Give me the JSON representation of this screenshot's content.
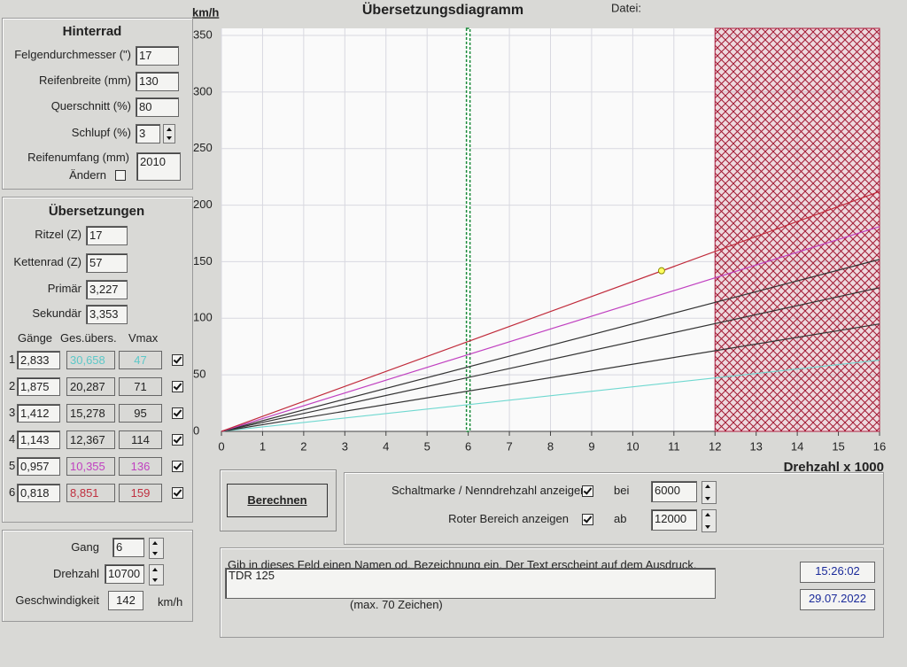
{
  "window": {
    "title": "Übersetzungsdiagramm",
    "file_label": "Datei:"
  },
  "rear_wheel": {
    "title": "Hinterrad",
    "fields": [
      {
        "label": "Felgendurchmesser (\")",
        "value": "17"
      },
      {
        "label": "Reifenbreite (mm)",
        "value": "130"
      },
      {
        "label": "Querschnitt (%)",
        "value": "80"
      },
      {
        "label": "Schlupf (%)",
        "value": "3"
      }
    ],
    "circumference": {
      "label": "Reifenumfang (mm)",
      "change_label": "Ändern",
      "value": "2010"
    }
  },
  "gearing": {
    "title": "Übersetzungen",
    "fields": [
      {
        "label": "Ritzel (Z)",
        "value": "17"
      },
      {
        "label": "Kettenrad (Z)",
        "value": "57"
      },
      {
        "label": "Primär",
        "value": "3,227"
      },
      {
        "label": "Sekundär",
        "value": "3,353"
      }
    ],
    "headers": [
      "Gänge",
      "Ges.übers.",
      "Vmax"
    ],
    "rows": [
      {
        "gear": "1",
        "ratio": "2,833",
        "total": "30,658",
        "vmax": "47",
        "color": "#5cc8c8"
      },
      {
        "gear": "2",
        "ratio": "1,875",
        "total": "20,287",
        "vmax": "71",
        "color": "#222222"
      },
      {
        "gear": "3",
        "ratio": "1,412",
        "total": "15,278",
        "vmax": "95",
        "color": "#222222"
      },
      {
        "gear": "4",
        "ratio": "1,143",
        "total": "12,367",
        "vmax": "114",
        "color": "#222222"
      },
      {
        "gear": "5",
        "ratio": "0,957",
        "total": "10,355",
        "vmax": "136",
        "color": "#c040c0"
      },
      {
        "gear": "6",
        "ratio": "0,818",
        "total": "8,851",
        "vmax": "159",
        "color": "#c03040"
      }
    ]
  },
  "state": {
    "gear_label": "Gang",
    "gear": "6",
    "rpm_label": "Drehzahl",
    "rpm": "10700",
    "speed_label": "Geschwindigkeit",
    "speed": "142",
    "speed_unit": "km/h"
  },
  "button": "Berechnen",
  "options": {
    "shift_label": "Schaltmarke / Nenndrehzahl anzeigen",
    "shift_prep": "bei",
    "shift_value": "6000",
    "red_label": "Roter Bereich anzeigen",
    "red_prep": "ab",
    "red_value": "12000"
  },
  "note": {
    "prompt": "Gib in dieses Feld einen Namen od. Bezeichnung ein. Der Text erscheint auf dem Ausdruck.",
    "text": "TDR 125",
    "limit": "(max. 70 Zeichen)",
    "time": "15:26:02",
    "date": "29.07.2022"
  },
  "chart_data": {
    "type": "line",
    "y_label": "km/h",
    "x_label": "Drehzahl x 1000",
    "xlim": [
      0,
      16
    ],
    "ylim": [
      0,
      350
    ],
    "xticks": [
      0,
      1,
      2,
      3,
      4,
      5,
      6,
      7,
      8,
      9,
      10,
      11,
      12,
      13,
      14,
      15,
      16
    ],
    "yticks": [
      0,
      50,
      100,
      150,
      200,
      250,
      300,
      350
    ],
    "grid": true,
    "series": [
      {
        "color": "#6fd8d0",
        "x": [
          0,
          16
        ],
        "values": [
          0,
          63
        ]
      },
      {
        "color": "#333333",
        "x": [
          0,
          16
        ],
        "values": [
          0,
          95
        ]
      },
      {
        "color": "#333333",
        "x": [
          0,
          16
        ],
        "values": [
          0,
          127
        ]
      },
      {
        "color": "#333333",
        "x": [
          0,
          16
        ],
        "values": [
          0,
          152
        ]
      },
      {
        "color": "#c040c0",
        "x": [
          0,
          16
        ],
        "values": [
          0,
          181
        ]
      },
      {
        "color": "#c02a3a",
        "x": [
          0,
          16
        ],
        "values": [
          0,
          212
        ]
      }
    ],
    "shift_marker": {
      "x": 6,
      "color": "#1a8a3a"
    },
    "red_zone": {
      "from": 12,
      "color": "#b02040"
    },
    "operating_point": {
      "x": 10.7,
      "y": 142,
      "color": "#ffff60"
    }
  }
}
